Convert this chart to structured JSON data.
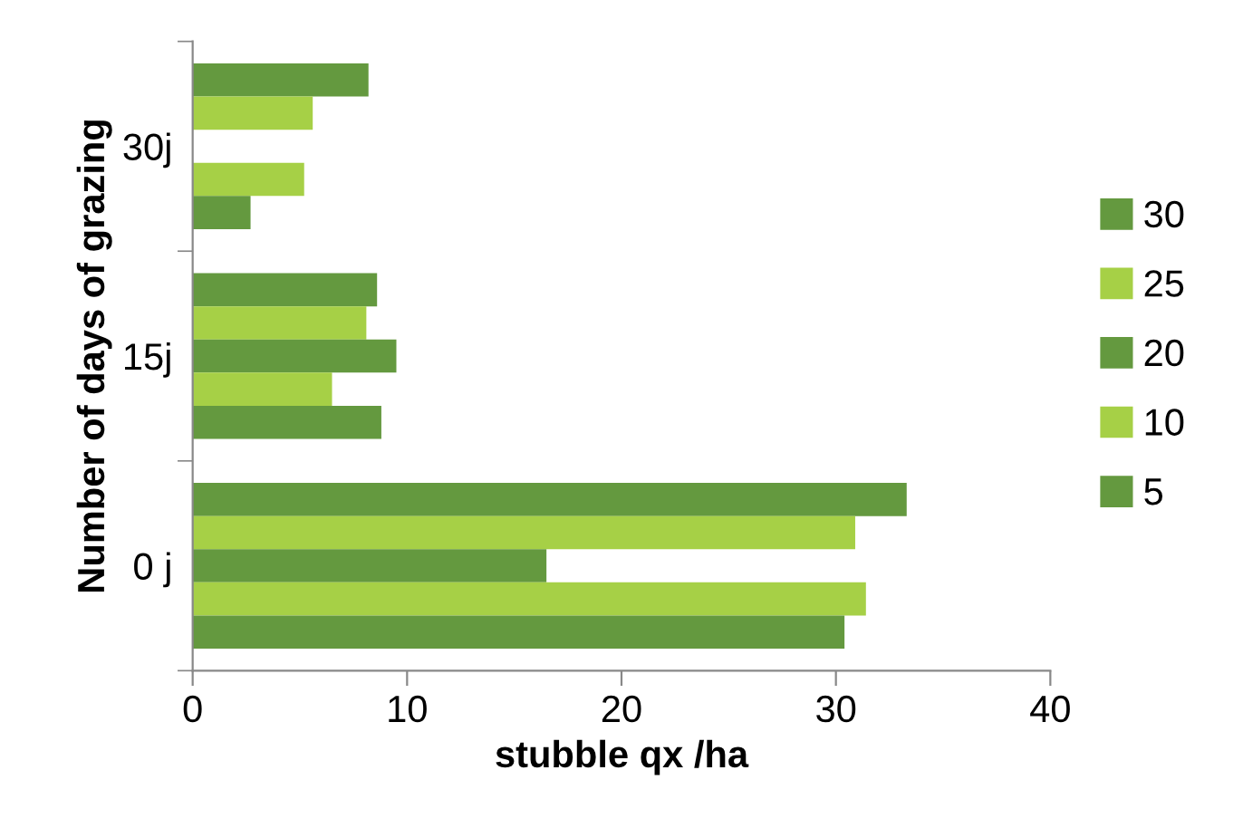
{
  "chart_data": {
    "type": "bar",
    "orientation": "horizontal",
    "xlabel": "stubble qx /ha",
    "ylabel": "Number of days of grazing",
    "categories": [
      "30j",
      "15j",
      "0 j"
    ],
    "series": [
      {
        "name": "30",
        "color": "#64993f",
        "values": [
          8.2,
          8.6,
          33.3
        ]
      },
      {
        "name": "25",
        "color": "#a6d046",
        "values": [
          5.6,
          8.1,
          30.9
        ]
      },
      {
        "name": "20",
        "color": "#64993f",
        "values": [
          null,
          9.5,
          16.5
        ]
      },
      {
        "name": "10",
        "color": "#a6d046",
        "values": [
          5.2,
          6.5,
          31.4
        ]
      },
      {
        "name": "5",
        "color": "#64993f",
        "values": [
          2.7,
          8.8,
          30.4
        ]
      }
    ],
    "xlim": [
      0,
      40
    ],
    "xticks": [
      0,
      10,
      20,
      30,
      40
    ],
    "grid": false,
    "legend": "right"
  }
}
